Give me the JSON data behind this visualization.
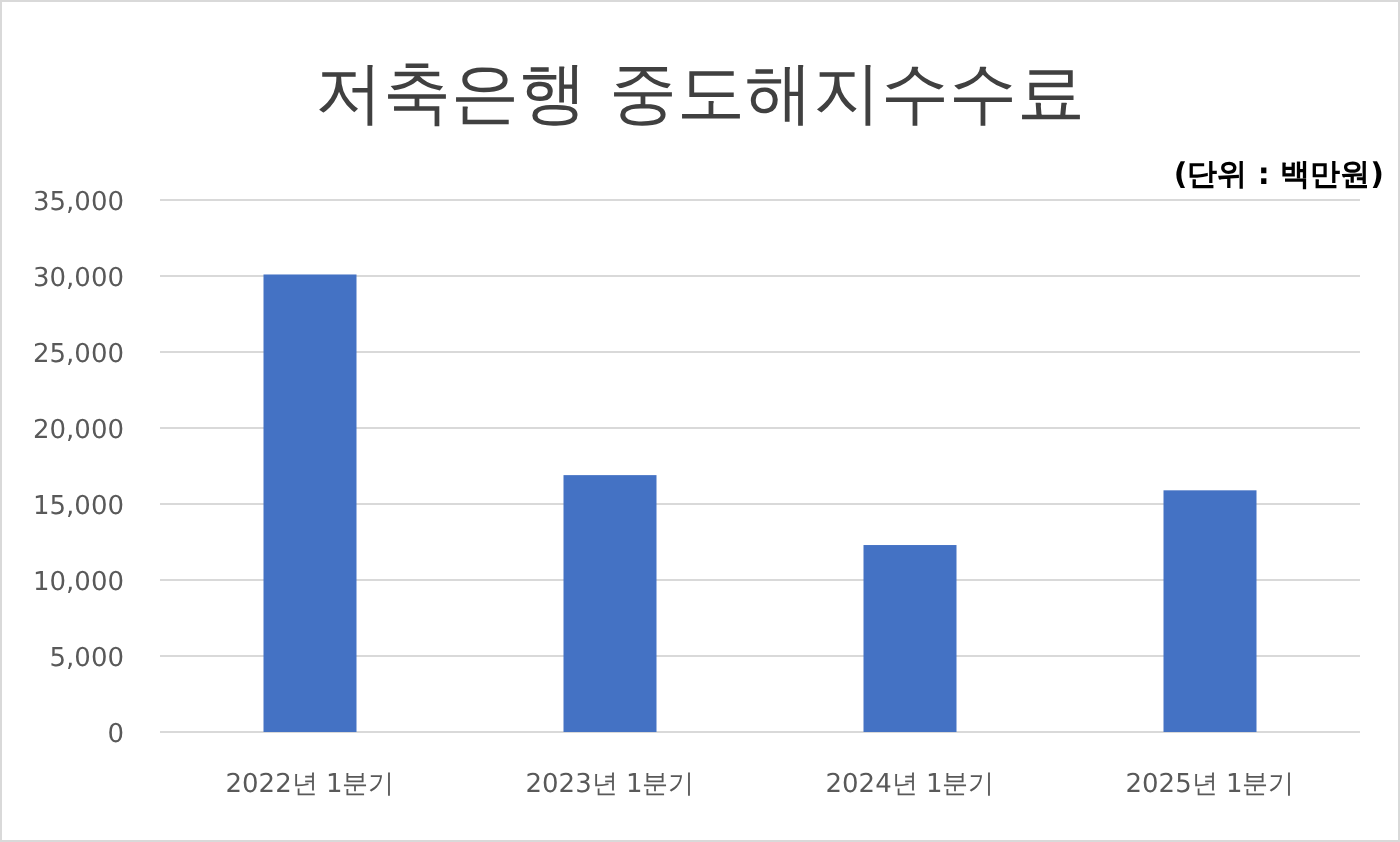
{
  "chart_data": {
    "type": "bar",
    "title": "저축은행 중도해지수수료",
    "annotations": [
      "(단위 : 백만원)"
    ],
    "categories": [
      "2022년 1분기",
      "2023년 1분기",
      "2024년 1분기",
      "2025년 1분기"
    ],
    "values": [
      30100,
      16900,
      12300,
      15900
    ],
    "color": "#4472c4",
    "ylim": [
      0,
      35000
    ],
    "yticks": [
      {
        "value": 0,
        "label": "0"
      },
      {
        "value": 5000,
        "label": "5,000"
      },
      {
        "value": 10000,
        "label": "10,000"
      },
      {
        "value": 15000,
        "label": "15,000"
      },
      {
        "value": 20000,
        "label": "20,000"
      },
      {
        "value": 25000,
        "label": "25,000"
      },
      {
        "value": 30000,
        "label": "30,000"
      },
      {
        "value": 35000,
        "label": "35,000"
      }
    ],
    "grid": "y"
  }
}
